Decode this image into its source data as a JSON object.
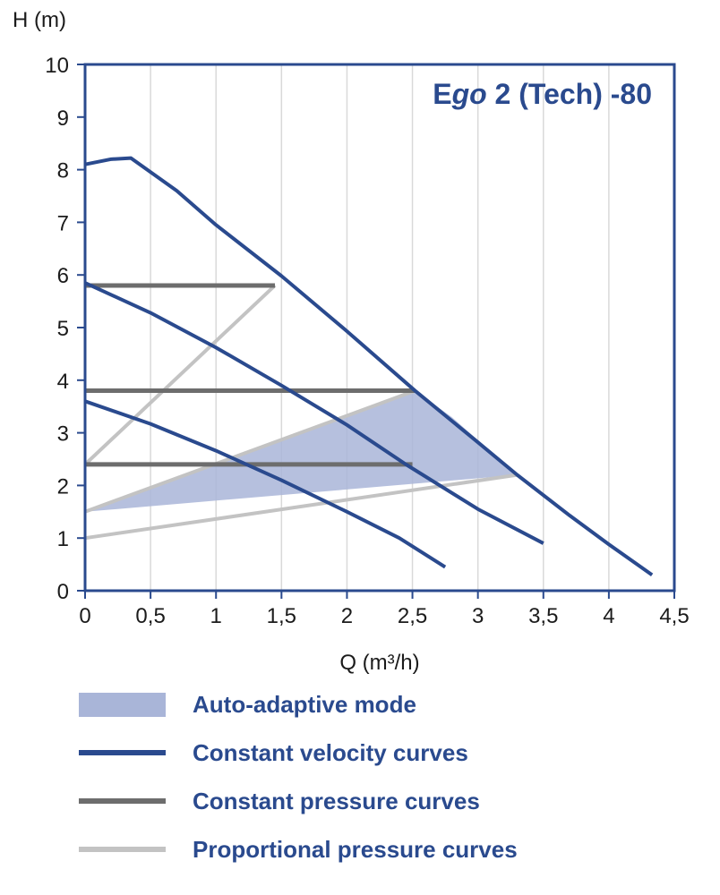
{
  "title": "Ego 2 (Tech) -80",
  "title_parts": {
    "prefix": "E",
    "italic": "go",
    "suffix": " 2 (Tech) -80"
  },
  "colors": {
    "frame_blue": "#2a4a8e",
    "velocity_blue": "#2a4a8e",
    "constant_pressure_gray": "#6d6d6d",
    "proportional_gray": "#c3c3c3",
    "auto_adaptive_fill": "#a9b5d8",
    "gridline": "#d9d9d9"
  },
  "chart_data": {
    "type": "line",
    "title": "Ego 2 (Tech) -80",
    "xlabel": "Q (m³/h)",
    "ylabel": "H (m)",
    "xlim": [
      0,
      4.5
    ],
    "ylim": [
      0,
      10
    ],
    "x_ticks": [
      0,
      0.5,
      1,
      1.5,
      2,
      2.5,
      3,
      3.5,
      4,
      4.5
    ],
    "x_tick_labels": [
      "0",
      "0,5",
      "1",
      "1,5",
      "2",
      "2,5",
      "3",
      "3,5",
      "4",
      "4,5"
    ],
    "y_ticks": [
      0,
      1,
      2,
      3,
      4,
      5,
      6,
      7,
      8,
      9,
      10
    ],
    "y_tick_labels": [
      "0",
      "1",
      "2",
      "3",
      "4",
      "5",
      "6",
      "7",
      "8",
      "9",
      "10"
    ],
    "grid": {
      "vertical": true,
      "horizontal": false
    },
    "legend_position": "below",
    "auto_adaptive_region": {
      "label": "Auto-adaptive mode",
      "color": "#a9b5d8",
      "points": [
        [
          0,
          1.5
        ],
        [
          2.52,
          3.8
        ],
        [
          2.8,
          3.3
        ],
        [
          3.05,
          2.75
        ],
        [
          3.3,
          2.2
        ]
      ]
    },
    "series": [
      {
        "group": "proportional-pressure",
        "name": "Proportional pressure curve (max)",
        "color": "#c3c3c3",
        "width": 4,
        "points": [
          [
            0,
            2.4
          ],
          [
            1.45,
            5.8
          ]
        ]
      },
      {
        "group": "proportional-pressure",
        "name": "Proportional pressure curve (mid)",
        "color": "#c3c3c3",
        "width": 4,
        "points": [
          [
            0,
            1.5
          ],
          [
            2.52,
            3.8
          ]
        ]
      },
      {
        "group": "proportional-pressure",
        "name": "Proportional pressure curve (min)",
        "color": "#c3c3c3",
        "width": 4,
        "points": [
          [
            0,
            1.0
          ],
          [
            3.3,
            2.2
          ]
        ]
      },
      {
        "group": "constant-pressure",
        "name": "Constant pressure curve (H = 5.8 m)",
        "color": "#6d6d6d",
        "width": 5,
        "points": [
          [
            0,
            5.8
          ],
          [
            1.45,
            5.8
          ]
        ]
      },
      {
        "group": "constant-pressure",
        "name": "Constant pressure curve (H = 3.8 m)",
        "color": "#6d6d6d",
        "width": 5,
        "points": [
          [
            0,
            3.8
          ],
          [
            2.52,
            3.8
          ]
        ]
      },
      {
        "group": "constant-pressure",
        "name": "Constant pressure curve (H = 2.4 m)",
        "color": "#6d6d6d",
        "width": 5,
        "points": [
          [
            0,
            2.4
          ],
          [
            2.5,
            2.4
          ]
        ]
      },
      {
        "group": "constant-velocity",
        "name": "Constant velocity curve (speed III)",
        "color": "#2a4a8e",
        "width": 4,
        "points": [
          [
            0,
            8.1
          ],
          [
            0.2,
            8.2
          ],
          [
            0.35,
            8.22
          ],
          [
            0.7,
            7.6
          ],
          [
            1.0,
            6.95
          ],
          [
            1.5,
            5.98
          ],
          [
            2.0,
            4.93
          ],
          [
            2.52,
            3.8
          ],
          [
            3.0,
            2.82
          ],
          [
            3.3,
            2.2
          ],
          [
            3.7,
            1.43
          ],
          [
            4.0,
            0.88
          ],
          [
            4.33,
            0.3
          ]
        ]
      },
      {
        "group": "constant-velocity",
        "name": "Constant velocity curve (speed II)",
        "color": "#2a4a8e",
        "width": 4,
        "points": [
          [
            0,
            5.85
          ],
          [
            0.5,
            5.28
          ],
          [
            1.0,
            4.62
          ],
          [
            1.5,
            3.9
          ],
          [
            2.0,
            3.15
          ],
          [
            2.45,
            2.4
          ],
          [
            3.0,
            1.55
          ],
          [
            3.5,
            0.9
          ]
        ]
      },
      {
        "group": "constant-velocity",
        "name": "Constant velocity curve (speed I)",
        "color": "#2a4a8e",
        "width": 4,
        "points": [
          [
            0,
            3.6
          ],
          [
            0.5,
            3.17
          ],
          [
            1.0,
            2.66
          ],
          [
            1.5,
            2.1
          ],
          [
            2.0,
            1.5
          ],
          [
            2.4,
            1.0
          ],
          [
            2.75,
            0.45
          ]
        ]
      }
    ]
  },
  "legend": {
    "items": [
      {
        "type": "area",
        "color": "#a9b5d8",
        "label": "Auto-adaptive mode"
      },
      {
        "type": "line",
        "color": "#2a4a8e",
        "label": "Constant velocity curves"
      },
      {
        "type": "line",
        "color": "#6d6d6d",
        "label": "Constant pressure curves"
      },
      {
        "type": "line",
        "color": "#c3c3c3",
        "label": "Proportional pressure curves"
      }
    ]
  }
}
